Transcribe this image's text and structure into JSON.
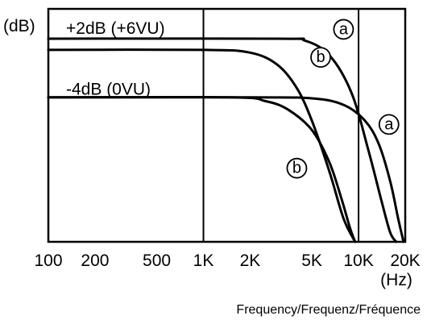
{
  "chart_data": {
    "type": "line",
    "xscale": "log",
    "xlim": [
      100,
      20000
    ],
    "ylim": [
      -20,
      5
    ],
    "ylabel": "(dB)",
    "xunit": "(Hz)",
    "xlabel": "Frequency/Frequenz/Fréquence",
    "xticks": [
      {
        "value": 100,
        "label": "100"
      },
      {
        "value": 200,
        "label": "200"
      },
      {
        "value": 500,
        "label": "500"
      },
      {
        "value": 1000,
        "label": "1K"
      },
      {
        "value": 2000,
        "label": "2K"
      },
      {
        "value": 5000,
        "label": "5K"
      },
      {
        "value": 10000,
        "label": "10K"
      },
      {
        "value": 20000,
        "label": "20K"
      }
    ],
    "gridlines_x": [
      1000,
      10000
    ],
    "level_labels": [
      {
        "text": "+2dB (+6VU)",
        "anchor_x": 130,
        "anchor_y": 3.0
      },
      {
        "text": "-4dB (0VU)",
        "anchor_x": 130,
        "anchor_y": -3.5
      }
    ],
    "series": [
      {
        "marker": "a",
        "level": "+2dB (+6VU)",
        "x": [
          100,
          3000,
          4500,
          6500,
          9000,
          11500,
          14000,
          16000,
          17500
        ],
        "y": [
          1.8,
          1.8,
          1.6,
          0.0,
          -4.0,
          -10.0,
          -15.5,
          -19.0,
          -20.0
        ]
      },
      {
        "marker": "b",
        "level": "+2dB (+6VU)",
        "x": [
          100,
          1000,
          2000,
          3000,
          4000,
          5000,
          6500,
          8000,
          9500
        ],
        "y": [
          0.6,
          0.6,
          0.3,
          -1.0,
          -3.5,
          -7.0,
          -12.5,
          -17.5,
          -20.0
        ]
      },
      {
        "marker": "a",
        "level": "-4dB (0VU)",
        "x": [
          100,
          2000,
          5000,
          8000,
          11000,
          13500,
          16000,
          18000,
          19500
        ],
        "y": [
          -4.5,
          -4.5,
          -4.6,
          -5.3,
          -7.0,
          -9.5,
          -13.5,
          -17.5,
          -20.0
        ]
      },
      {
        "marker": "b",
        "level": "-4dB (0VU)",
        "x": [
          100,
          1500,
          2500,
          3500,
          5000,
          6500,
          7800,
          8800,
          9500
        ],
        "y": [
          -4.5,
          -4.5,
          -4.9,
          -5.8,
          -8.0,
          -11.5,
          -15.5,
          -18.5,
          -20.0
        ]
      }
    ],
    "annotations": [
      {
        "text": "a",
        "x": 8000,
        "y": 2.8
      },
      {
        "text": "b",
        "x": 5700,
        "y": -0.2
      },
      {
        "text": "a",
        "x": 15700,
        "y": -7.4
      },
      {
        "text": "b",
        "x": 4000,
        "y": -12.1
      }
    ]
  }
}
